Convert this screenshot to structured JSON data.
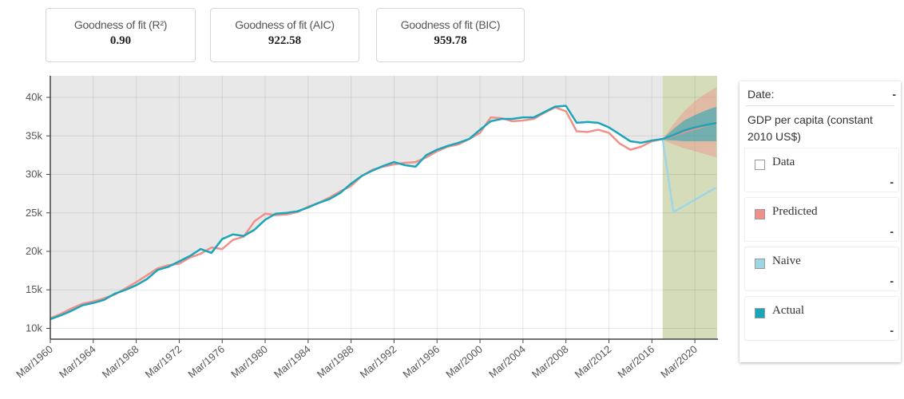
{
  "metrics": [
    {
      "label": "Goodness of fit (R²)",
      "value": "0.90"
    },
    {
      "label": "Goodness of fit (AIC)",
      "value": "922.58"
    },
    {
      "label": "Goodness of fit (BIC)",
      "value": "959.78"
    }
  ],
  "panel": {
    "date_label": "Date:",
    "date_value": "-",
    "variable": "GDP per capita (constant 2010 US$)",
    "readouts": [
      "-",
      "-",
      "-",
      "-"
    ]
  },
  "chart_data": {
    "type": "line",
    "x": [
      "Mar/1960",
      "Mar/1961",
      "Mar/1962",
      "Mar/1963",
      "Mar/1964",
      "Mar/1965",
      "Mar/1966",
      "Mar/1967",
      "Mar/1968",
      "Mar/1969",
      "Mar/1970",
      "Mar/1971",
      "Mar/1972",
      "Mar/1973",
      "Mar/1974",
      "Mar/1975",
      "Mar/1976",
      "Mar/1977",
      "Mar/1978",
      "Mar/1979",
      "Mar/1980",
      "Mar/1981",
      "Mar/1982",
      "Mar/1983",
      "Mar/1984",
      "Mar/1985",
      "Mar/1986",
      "Mar/1987",
      "Mar/1988",
      "Mar/1989",
      "Mar/1990",
      "Mar/1991",
      "Mar/1992",
      "Mar/1993",
      "Mar/1994",
      "Mar/1995",
      "Mar/1996",
      "Mar/1997",
      "Mar/1998",
      "Mar/1999",
      "Mar/2000",
      "Mar/2001",
      "Mar/2002",
      "Mar/2003",
      "Mar/2004",
      "Mar/2005",
      "Mar/2006",
      "Mar/2007",
      "Mar/2008",
      "Mar/2009",
      "Mar/2010",
      "Mar/2011",
      "Mar/2012",
      "Mar/2013",
      "Mar/2014",
      "Mar/2015",
      "Mar/2016",
      "Mar/2017",
      "Mar/2018",
      "Mar/2019",
      "Mar/2020",
      "Mar/2021",
      "Mar/2022"
    ],
    "forecast_start": "Mar/2017",
    "xticks": [
      "Mar/1960",
      "Mar/1964",
      "Mar/1968",
      "Mar/1972",
      "Mar/1976",
      "Mar/1980",
      "Mar/1984",
      "Mar/1988",
      "Mar/1992",
      "Mar/1996",
      "Mar/2000",
      "Mar/2004",
      "Mar/2008",
      "Mar/2012",
      "Mar/2016",
      "Mar/2020"
    ],
    "ylim": [
      8600,
      42800
    ],
    "yticks": [
      {
        "value": 10000,
        "label": "10k"
      },
      {
        "value": 15000,
        "label": "15k"
      },
      {
        "value": 20000,
        "label": "20k"
      },
      {
        "value": 25000,
        "label": "25k"
      },
      {
        "value": 30000,
        "label": "30k"
      },
      {
        "value": 35000,
        "label": "35k"
      },
      {
        "value": 40000,
        "label": "40k"
      }
    ],
    "grid": true,
    "bands": [
      {
        "color": "rgba(240,144,138,0.45)",
        "x": [
          "Mar/2017",
          "Mar/2018",
          "Mar/2019",
          "Mar/2020",
          "Mar/2021",
          "Mar/2022"
        ],
        "lower": [
          34500,
          33900,
          33400,
          33000,
          32600,
          32200
        ],
        "upper": [
          34600,
          36500,
          38200,
          39500,
          40500,
          41300
        ]
      },
      {
        "color": "rgba(26,165,184,0.55)",
        "x": [
          "Mar/2017",
          "Mar/2018",
          "Mar/2019",
          "Mar/2020",
          "Mar/2021",
          "Mar/2022"
        ],
        "lower": [
          34500,
          34400,
          34300,
          34300,
          34300,
          34300
        ],
        "upper": [
          34600,
          35900,
          37000,
          37700,
          38300,
          38800
        ]
      }
    ],
    "series": [
      {
        "name": "Data",
        "color": "#ffffff"
      },
      {
        "name": "Predicted",
        "color": "#f0908a",
        "values": [
          11300,
          11900,
          12600,
          13200,
          13500,
          13900,
          14400,
          15200,
          16000,
          16900,
          17800,
          18200,
          18400,
          19200,
          19700,
          20500,
          20300,
          21500,
          21900,
          23900,
          24900,
          24700,
          24800,
          25100,
          25800,
          26300,
          27000,
          27800,
          28500,
          29800,
          30600,
          31000,
          31300,
          31500,
          31600,
          32200,
          33000,
          33600,
          33900,
          34600,
          35400,
          37400,
          37300,
          36900,
          37000,
          37200,
          38000,
          38700,
          38200,
          35600,
          35500,
          35800,
          35400,
          34000,
          33200,
          33600,
          34300,
          34600,
          35000,
          35500,
          35900,
          36300,
          36800
        ]
      },
      {
        "name": "Naive",
        "color": "#9fd6e6",
        "x": [
          "Mar/2017",
          "Mar/2018",
          "Mar/2019",
          "Mar/2020",
          "Mar/2021",
          "Mar/2022"
        ],
        "values": [
          34600,
          25100,
          25900,
          26700,
          27500,
          28300
        ]
      },
      {
        "name": "Actual",
        "color": "#1aa5b8",
        "values": [
          11200,
          11700,
          12300,
          13000,
          13300,
          13700,
          14500,
          15000,
          15600,
          16400,
          17600,
          18000,
          18700,
          19400,
          20300,
          19800,
          21600,
          22200,
          22000,
          22800,
          24100,
          24900,
          25000,
          25200,
          25700,
          26300,
          26800,
          27600,
          28800,
          29800,
          30500,
          31100,
          31600,
          31200,
          31000,
          32500,
          33200,
          33700,
          34100,
          34600,
          35800,
          36900,
          37200,
          37200,
          37400,
          37400,
          38100,
          38800,
          38900,
          36700,
          36800,
          36700,
          36100,
          35200,
          34300,
          34100,
          34400,
          34600,
          35100,
          35700,
          36100,
          36400,
          36700
        ]
      }
    ]
  }
}
